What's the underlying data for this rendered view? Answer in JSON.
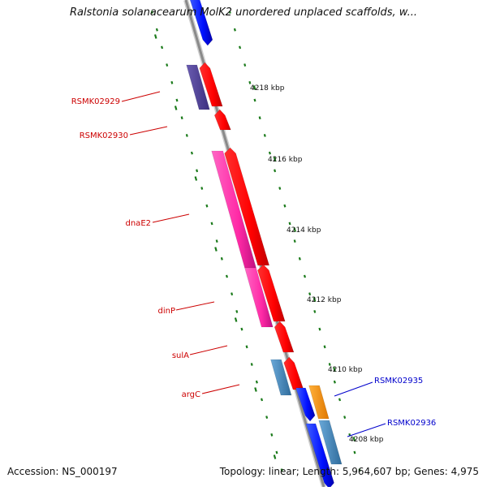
{
  "title": "Ralstonia solanacearum MolK2 unordered unplaced scaffolds, w...",
  "footer": {
    "accession_label": "Accession:",
    "accession": "NS_000197",
    "topology_label": "Topology:",
    "topology": "linear",
    "length_label": "Length:",
    "length": "5,964,607 bp",
    "genes_label": "Genes:",
    "genes": "4,975"
  },
  "scale_labels": [
    "4218 kbp",
    "4216 kbp",
    "4214 kbp",
    "4212 kbp",
    "4210 kbp",
    "4208 kbp"
  ],
  "genes": [
    {
      "name": "RSMK02929",
      "color": "#cc0000"
    },
    {
      "name": "RSMK02930",
      "color": "#cc0000"
    },
    {
      "name": "dnaE2",
      "color": "#cc0000"
    },
    {
      "name": "dinP",
      "color": "#cc0000"
    },
    {
      "name": "sulA",
      "color": "#cc0000"
    },
    {
      "name": "argC",
      "color": "#cc0000"
    },
    {
      "name": "RSMK02935",
      "color": "#0000cc"
    },
    {
      "name": "RSMK02936",
      "color": "#0000cc"
    }
  ],
  "colors": {
    "backbone": "#8c8c8c",
    "tick": "#1a7a1a",
    "forward": "#ff0000",
    "reverse": "#0000ff",
    "magenta": "#ff33aa",
    "purple": "#554499",
    "steelblue": "#4f8fc0",
    "orange": "#ff9900"
  }
}
